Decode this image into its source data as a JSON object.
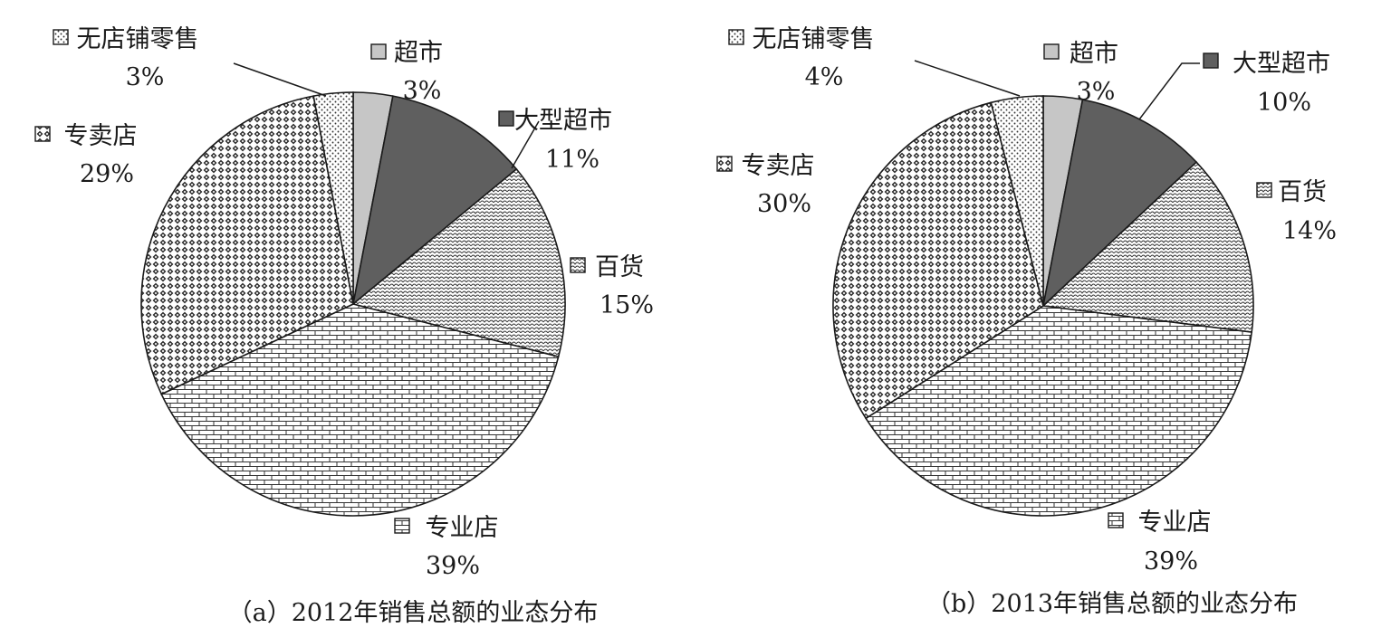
{
  "chart_data": [
    {
      "type": "pie",
      "title": "（a）2012年销售总额的业态分布",
      "slices": [
        {
          "label": "超市",
          "value": 3,
          "value_label": "3%",
          "pattern": "light-gray"
        },
        {
          "label": "大型超市",
          "value": 11,
          "value_label": "11%",
          "pattern": "dark-gray"
        },
        {
          "label": "百货",
          "value": 15,
          "value_label": "15%",
          "pattern": "scales"
        },
        {
          "label": "专业店",
          "value": 39,
          "value_label": "39%",
          "pattern": "bricks"
        },
        {
          "label": "专卖店",
          "value": 29,
          "value_label": "29%",
          "pattern": "diamonds"
        },
        {
          "label": "无店铺零售",
          "value": 3,
          "value_label": "3%",
          "pattern": "dots"
        }
      ]
    },
    {
      "type": "pie",
      "title": "（b）2013年销售总额的业态分布",
      "slices": [
        {
          "label": "超市",
          "value": 3,
          "value_label": "3%",
          "pattern": "light-gray"
        },
        {
          "label": "大型超市",
          "value": 10,
          "value_label": "10%",
          "pattern": "dark-gray"
        },
        {
          "label": "百货",
          "value": 14,
          "value_label": "14%",
          "pattern": "scales"
        },
        {
          "label": "专业店",
          "value": 39,
          "value_label": "39%",
          "pattern": "bricks"
        },
        {
          "label": "专卖店",
          "value": 30,
          "value_label": "30%",
          "pattern": "diamonds"
        },
        {
          "label": "无店铺零售",
          "value": 4,
          "value_label": "4%",
          "pattern": "dots"
        }
      ]
    }
  ],
  "colors": {
    "light-gray": "#c6c6c6",
    "dark-gray": "#5f5f5f",
    "ink": "#1a1a1a"
  }
}
